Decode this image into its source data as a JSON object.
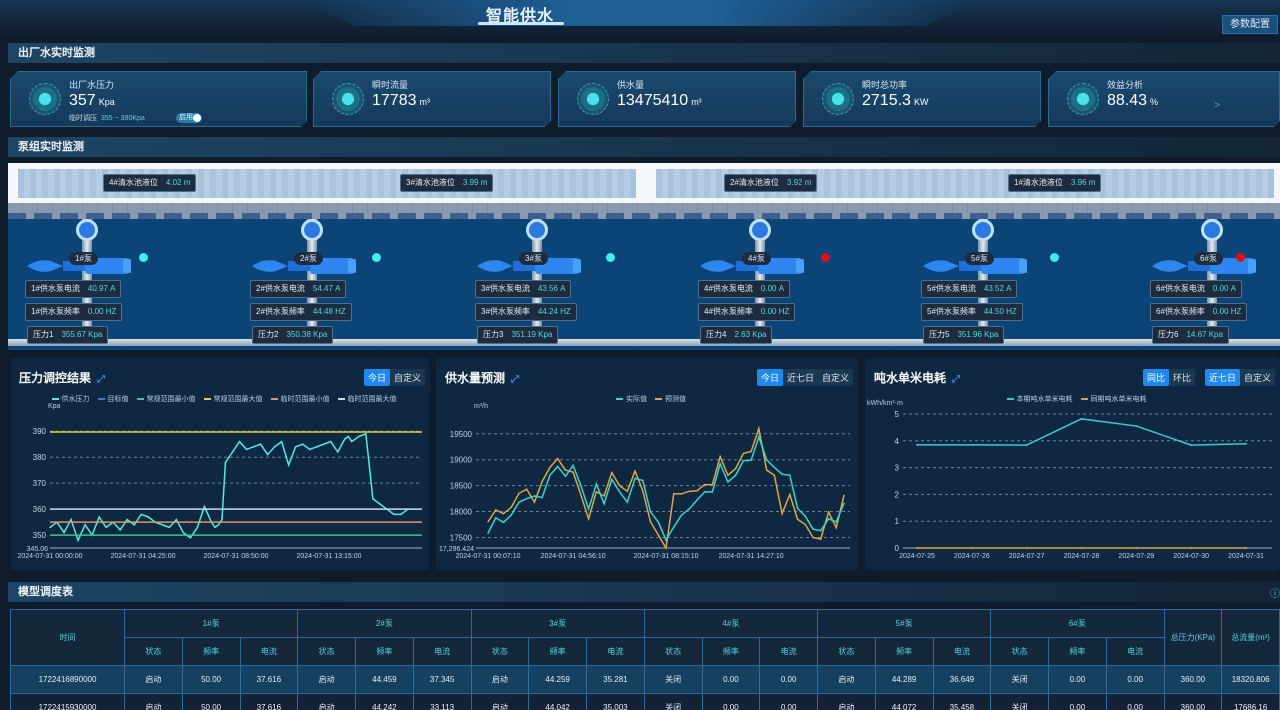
{
  "header": {
    "title": "智能供水",
    "config_button": "参数配置"
  },
  "sections": {
    "outlet": "出厂水实时监测",
    "pumps": "泵组实时监测",
    "schedule": "模型调度表"
  },
  "kpis": [
    {
      "label": "出厂水压力",
      "value": "357",
      "unit": "Kpa",
      "icon": "gauge-icon",
      "sub_label": "临时调压",
      "sub_range": "355 ~ 380Kpa",
      "toggle": "启用",
      "toggle_on": true
    },
    {
      "label": "瞬时流量",
      "value": "17783",
      "unit": "m³",
      "icon": "water-drop-icon"
    },
    {
      "label": "供水量",
      "value": "13475410",
      "unit": "m³",
      "icon": "water-drop-icon"
    },
    {
      "label": "瞬时总功率",
      "value": "2715.3",
      "unit": "KW",
      "icon": "gauge-icon"
    },
    {
      "label": "效益分析",
      "value": "88.43",
      "unit": "%",
      "icon": "gauge-icon",
      "link": ">"
    }
  ],
  "tanks": [
    {
      "label": "4#清水池液位",
      "value": "4.02 m"
    },
    {
      "label": "3#清水池液位",
      "value": "3.99 m"
    },
    {
      "label": "2#清水池液位",
      "value": "3.92 m"
    },
    {
      "label": "1#清水池液位",
      "value": "3.96 m"
    }
  ],
  "pumps": [
    {
      "name": "1#泵",
      "current_label": "1#供水泵电流",
      "current": "40.97 A",
      "freq_label": "1#供水泵频率",
      "freq": "0.00 HZ",
      "pressure_label": "压力1",
      "pressure": "355.67 Kpa",
      "status_color": "#3ff0ee"
    },
    {
      "name": "2#泵",
      "current_label": "2#供水泵电流",
      "current": "54.47 A",
      "freq_label": "2#供水泵频率",
      "freq": "44.48 HZ",
      "pressure_label": "压力2",
      "pressure": "350.38 Kpa",
      "status_color": "#3ff0ee"
    },
    {
      "name": "3#泵",
      "current_label": "3#供水泵电流",
      "current": "43.56 A",
      "freq_label": "3#供水泵频率",
      "freq": "44.24 HZ",
      "pressure_label": "压力3",
      "pressure": "351.19 Kpa",
      "status_color": "#3ff0ee"
    },
    {
      "name": "4#泵",
      "current_label": "4#供水泵电流",
      "current": "0.00 A",
      "freq_label": "4#供水泵频率",
      "freq": "0.00 HZ",
      "pressure_label": "压力4",
      "pressure": "2.63 Kpa",
      "status_color": "#e0101a"
    },
    {
      "name": "5#泵",
      "current_label": "5#供水泵电流",
      "current": "43.52 A",
      "freq_label": "5#供水泵频率",
      "freq": "44.50 HZ",
      "pressure_label": "压力5",
      "pressure": "351.96 Kpa",
      "status_color": "#3ff0ee"
    },
    {
      "name": "6#泵",
      "current_label": "6#供水泵电流",
      "current": "0.00 A",
      "freq_label": "6#供水泵频率",
      "freq": "0.00 HZ",
      "pressure_label": "压力6",
      "pressure": "14.67 Kpa",
      "status_color": "#e0101a"
    }
  ],
  "chart_panels": [
    {
      "title": "压力调控结果",
      "buttons": [
        "今日",
        "自定义"
      ],
      "active": 0
    },
    {
      "title": "供水量预测",
      "buttons": [
        "今日",
        "近七日",
        "自定义"
      ],
      "active": 0
    },
    {
      "title": "吨水单米电耗",
      "buttons": [
        "同比",
        "环比"
      ],
      "active": 0,
      "buttons2": [
        "近七日",
        "自定义"
      ],
      "active2": 0
    }
  ],
  "chart_data": [
    {
      "type": "line",
      "ylabel": "Kpa",
      "ylim": [
        345.06,
        392
      ],
      "yticks": [
        390,
        380,
        370,
        360,
        350
      ],
      "ymin_label": "345.06",
      "grid": true,
      "legend": "top",
      "xticks": [
        "2024-07-31 00:00:00",
        "2024-07-31 04:25:00",
        "2024-07-31 08:50:00",
        "2024-07-31 13:15:00"
      ],
      "xrange": [
        "00:00",
        "17:40"
      ],
      "series": [
        {
          "name": "供水压力",
          "color": "#4ff0e0",
          "x": [
            "00:00",
            "00:20",
            "00:40",
            "01:00",
            "01:20",
            "01:40",
            "02:00",
            "02:20",
            "02:40",
            "03:00",
            "03:20",
            "03:40",
            "04:00",
            "04:20",
            "04:40",
            "05:00",
            "05:20",
            "05:40",
            "06:00",
            "06:20",
            "06:40",
            "07:00",
            "07:20",
            "07:40",
            "07:50",
            "08:00",
            "08:10",
            "08:20",
            "08:40",
            "09:00",
            "09:20",
            "09:40",
            "10:00",
            "10:20",
            "10:40",
            "11:00",
            "11:20",
            "11:40",
            "12:00",
            "12:20",
            "12:40",
            "13:00",
            "13:20",
            "13:40",
            "14:00",
            "14:10",
            "14:20",
            "14:40",
            "15:00",
            "15:20",
            "15:40",
            "16:00",
            "16:20",
            "16:40",
            "17:00"
          ],
          "y": [
            353,
            355,
            351,
            356,
            348,
            354,
            350,
            357,
            353,
            355,
            352,
            356,
            354,
            358,
            357,
            355,
            354,
            353,
            356,
            351,
            349,
            353,
            361,
            355,
            353,
            354,
            356,
            378,
            382,
            386,
            383,
            384,
            385,
            381,
            384,
            386,
            377,
            384,
            385,
            383,
            384,
            385,
            386,
            382,
            387,
            388,
            386,
            388,
            389,
            364,
            362,
            360,
            358,
            358,
            360
          ]
        },
        {
          "name": "目标值",
          "color": "#2d7de8",
          "x": [],
          "y": []
        },
        {
          "name": "常规范围最小值",
          "color": "#3fc0a0",
          "constant": 350
        },
        {
          "name": "常规范围最大值",
          "color": "#e6d23c",
          "constant": 389.7
        },
        {
          "name": "临时范围最小值",
          "color": "#e0956a",
          "constant": 355
        },
        {
          "name": "临时范围最大值",
          "color": "#cfd8e6",
          "constant": 360
        }
      ]
    },
    {
      "type": "line",
      "ylabel": "m³/h",
      "ylim": [
        17296.424,
        19650
      ],
      "yticks": [
        19500,
        19000,
        18500,
        18000,
        17500
      ],
      "ymin_label": "17,296.424",
      "grid": true,
      "legend": "top",
      "xticks": [
        "2024-07-31 00:07:10",
        "2024-07-31 04:56:10",
        "2024-07-31 08:15:10",
        "2024-07-31 14:27:10"
      ],
      "series": [
        {
          "name": "实际值",
          "color": "#3fd3cf",
          "y": [
            17580,
            17880,
            17790,
            17930,
            18180,
            18250,
            18300,
            18270,
            18700,
            18870,
            18680,
            18890,
            18500,
            18050,
            18530,
            18150,
            18620,
            18380,
            18180,
            18640,
            18600,
            17990,
            17800,
            17450,
            17700,
            17930,
            18050,
            18220,
            18380,
            18380,
            18920,
            18570,
            18700,
            18980,
            18990,
            19440,
            19000,
            18850,
            18720,
            18700,
            18060,
            17910,
            17660,
            17630,
            17860,
            17800,
            18160
          ]
        },
        {
          "name": "预测值",
          "color": "#e0a845",
          "y": [
            17800,
            18030,
            17960,
            18080,
            18350,
            18430,
            18180,
            18580,
            18850,
            19020,
            18800,
            18760,
            18320,
            17860,
            18380,
            18300,
            18750,
            18500,
            18390,
            18780,
            18400,
            17800,
            17550,
            17296,
            18340,
            18340,
            18390,
            18400,
            18520,
            18520,
            19060,
            18700,
            18830,
            19120,
            19160,
            19600,
            18800,
            18700,
            17960,
            18330,
            17850,
            17750,
            17500,
            17470,
            17990,
            17690,
            18310
          ]
        }
      ]
    },
    {
      "type": "line",
      "ylabel": "kWh/km³·m",
      "ylim": [
        0,
        5
      ],
      "yticks": [
        5,
        4,
        3,
        2,
        1,
        0
      ],
      "grid": true,
      "legend": "top",
      "categories": [
        "2024-07-25",
        "2024-07-26",
        "2024-07-27",
        "2024-07-28",
        "2024-07-29",
        "2024-07-30",
        "2024-07-31"
      ],
      "series": [
        {
          "name": "本期吨水单米电耗",
          "color": "#3fc8c8",
          "y": [
            3.85,
            3.85,
            3.84,
            4.82,
            4.55,
            3.84,
            3.89
          ]
        },
        {
          "name": "同期吨水单米电耗",
          "color": "#d9a540",
          "y": [
            0,
            0,
            0,
            0,
            0,
            0,
            0
          ]
        }
      ]
    }
  ],
  "table": {
    "time_header": "时间",
    "pump_headers": [
      "1#泵",
      "2#泵",
      "3#泵",
      "4#泵",
      "5#泵",
      "6#泵"
    ],
    "sub_headers": [
      "状态",
      "频率",
      "电流"
    ],
    "total_pressure_header": "总压力(KPa)",
    "total_flow_header": "总流量(m³)",
    "rows": [
      [
        "1722416890000",
        "启动",
        "50.00",
        "37.616",
        "启动",
        "44.459",
        "37.345",
        "启动",
        "44.259",
        "35.281",
        "关闭",
        "0.00",
        "0.00",
        "启动",
        "44.289",
        "36.649",
        "关闭",
        "0.00",
        "0.00",
        "360.00",
        "18320.806"
      ],
      [
        "1722415930000",
        "启动",
        "50.00",
        "37.616",
        "启动",
        "44.242",
        "33.113",
        "启动",
        "44.042",
        "35.003",
        "关闭",
        "0.00",
        "0.00",
        "启动",
        "44.072",
        "35.458",
        "关闭",
        "0.00",
        "0.00",
        "360.00",
        "17686.16"
      ]
    ]
  },
  "colors": {
    "accent": "#1f89f0",
    "cyan": "#52d8e3",
    "background": "#0f1c2b"
  }
}
